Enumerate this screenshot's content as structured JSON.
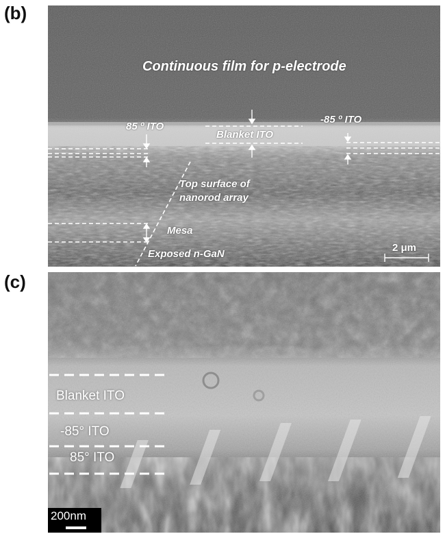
{
  "figure": {
    "panel_b": {
      "label": "(b)",
      "annotations": {
        "continuous_film": "Continuous film for  p-electrode",
        "ito_85": "85 º ITO",
        "blanket_ito": "Blanket ITO",
        "ito_minus85": "-85 º ITO",
        "top_surface_line1": "Top surface of",
        "top_surface_line2": "nanorod array",
        "mesa": "Mesa",
        "exposed": "Exposed n-GaN",
        "scale": "2 μm"
      }
    },
    "panel_c": {
      "label": "(c)",
      "annotations": {
        "blanket_ito": "Blanket  ITO",
        "ito_minus85": "-85° ITO",
        "ito_85": "85° ITO",
        "scale": "200nm"
      }
    }
  }
}
